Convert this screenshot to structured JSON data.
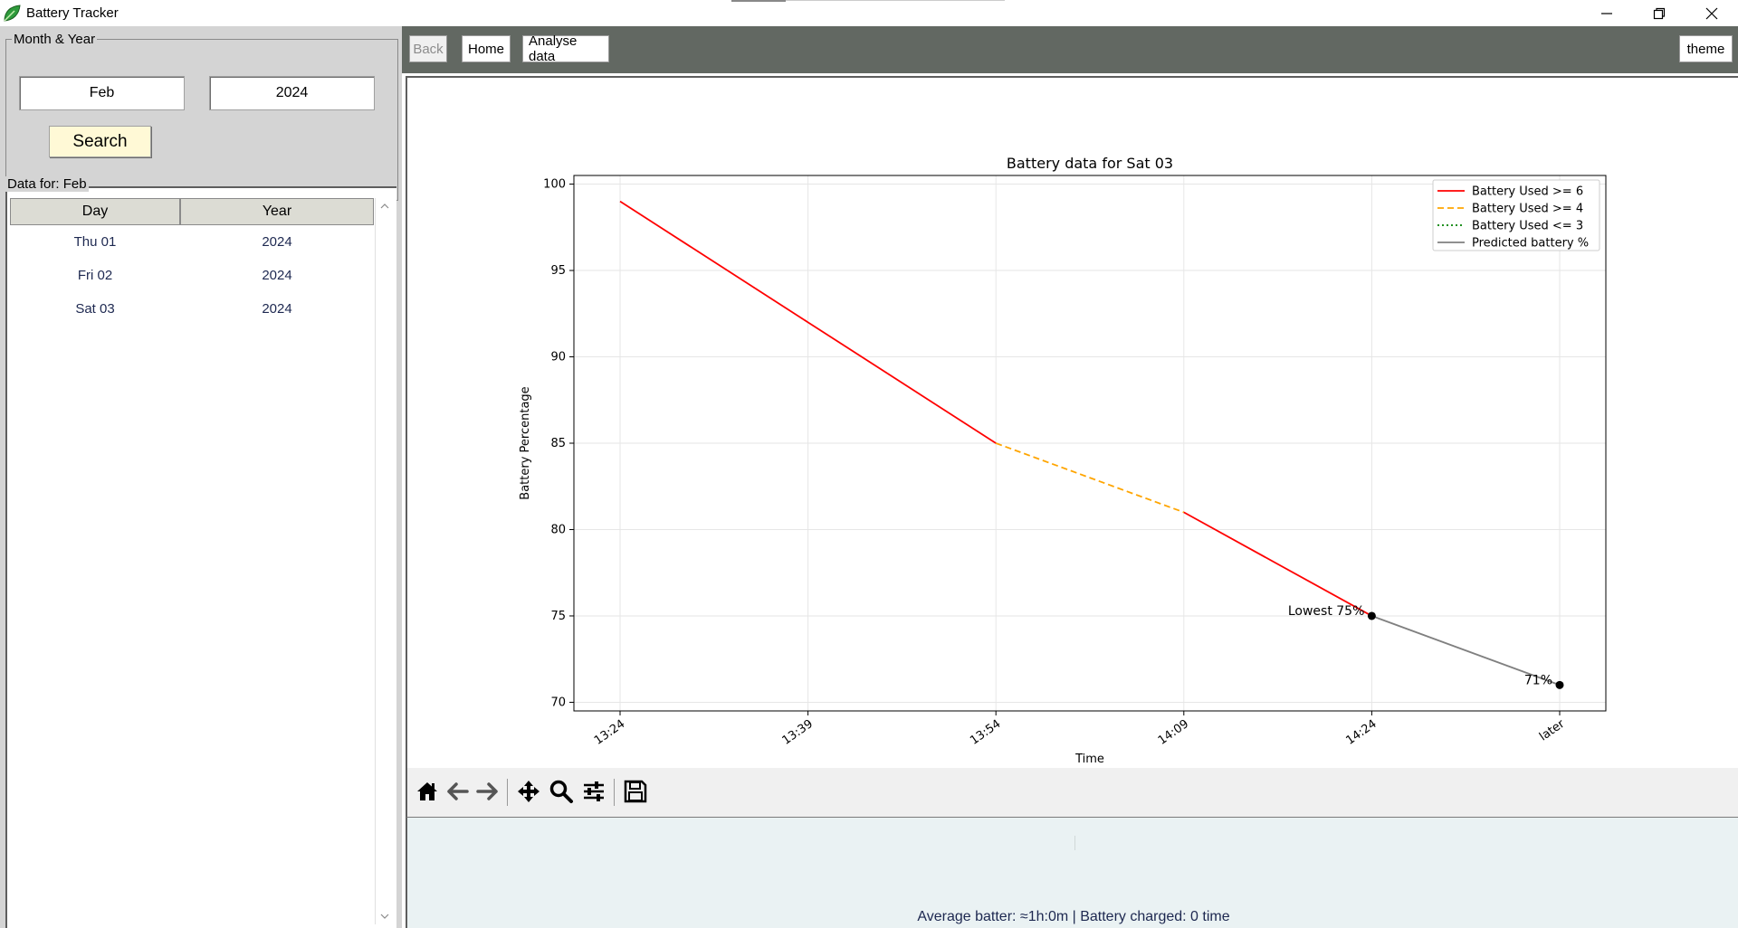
{
  "window": {
    "title": "Battery Tracker"
  },
  "filter": {
    "group_label": "Month & Year",
    "month_value": "Feb",
    "year_value": "2024",
    "search_label": "Search"
  },
  "data_list": {
    "group_label": "Data for: Feb",
    "headers": {
      "day": "Day",
      "year": "Year"
    },
    "rows": [
      {
        "day": "Thu 01",
        "year": "2024"
      },
      {
        "day": "Fri 02",
        "year": "2024"
      },
      {
        "day": "Sat 03",
        "year": "2024"
      }
    ]
  },
  "toolbar": {
    "back_label": "Back",
    "home_label": "Home",
    "analyse_label": "Analyse data",
    "theme_label": "theme"
  },
  "mpl_toolbar": {
    "icons": [
      "home-icon",
      "back-arrow-icon",
      "forward-arrow-icon",
      "pan-icon",
      "zoom-icon",
      "configure-subplots-icon",
      "save-icon"
    ]
  },
  "status": {
    "text": "Average batter: ≈1h:0m | Battery charged: 0 time"
  },
  "colors": {
    "used_ge6": "#ff0000",
    "used_ge4": "#ffa500",
    "used_le3": "#008000",
    "predicted": "#808080",
    "toolbar_bg": "#626862",
    "search_bg": "#fff9d6"
  },
  "chart_data": {
    "type": "line",
    "title": "Battery data for Sat 03",
    "xlabel": "Time",
    "ylabel": "Battery Percentage",
    "categories": [
      "13:24",
      "13:39",
      "13:54",
      "14:09",
      "14:24",
      "later"
    ],
    "ylim": [
      69.5,
      100.5
    ],
    "yticks": [
      70,
      75,
      80,
      85,
      90,
      95,
      100
    ],
    "grid": true,
    "legend_position": "top-right",
    "series": [
      {
        "name": "Battery Used >= 6",
        "style": "solid",
        "color": "#ff0000",
        "segments": [
          [
            [
              0,
              99
            ],
            [
              1,
              92
            ],
            [
              2,
              85
            ]
          ],
          [
            [
              3,
              81
            ],
            [
              4,
              75
            ]
          ]
        ]
      },
      {
        "name": "Battery Used >= 4",
        "style": "dashed",
        "color": "#ffa500",
        "segments": [
          [
            [
              2,
              85
            ],
            [
              3,
              81
            ]
          ]
        ]
      },
      {
        "name": "Battery Used <= 3",
        "style": "dotted",
        "color": "#008000",
        "segments": []
      },
      {
        "name": "Predicted battery %",
        "style": "solid",
        "color": "#808080",
        "segments": [
          [
            [
              4,
              75
            ],
            [
              5,
              71
            ]
          ]
        ]
      }
    ],
    "annotations": [
      {
        "x": 4,
        "y": 75,
        "text": "Lowest 75%"
      },
      {
        "x": 5,
        "y": 71,
        "text": "71%"
      }
    ]
  }
}
